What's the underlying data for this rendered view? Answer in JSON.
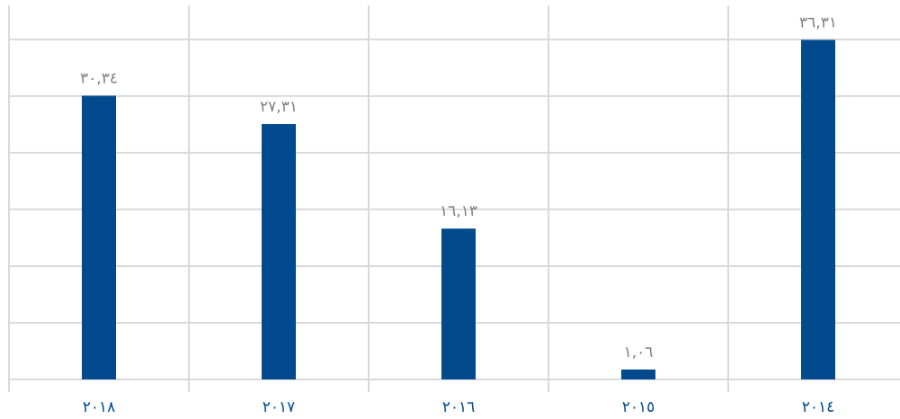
{
  "chart_data": {
    "type": "bar",
    "categories": [
      "٢٠١٨",
      "٢٠١٧",
      "٢٠١٦",
      "٢٠١٥",
      "٢٠١٤"
    ],
    "values": [
      30.34,
      27.31,
      16.13,
      1.06,
      36.31
    ],
    "data_labels": [
      "٣٠,٣٤",
      "٢٧,٣١",
      "١٦,١٣",
      "١,٠٦",
      "٣٦,٣١"
    ],
    "title": "",
    "xlabel": "",
    "ylabel": "",
    "ylim": [
      0,
      40
    ],
    "y_gridlines": [
      0,
      6.06,
      12.12,
      18.18,
      24.24,
      30.3,
      36.36
    ],
    "grid": true,
    "legend": "none",
    "bar_color": "#004a8d",
    "label_color": "#808080",
    "tick_label_color": "#004a8d"
  }
}
